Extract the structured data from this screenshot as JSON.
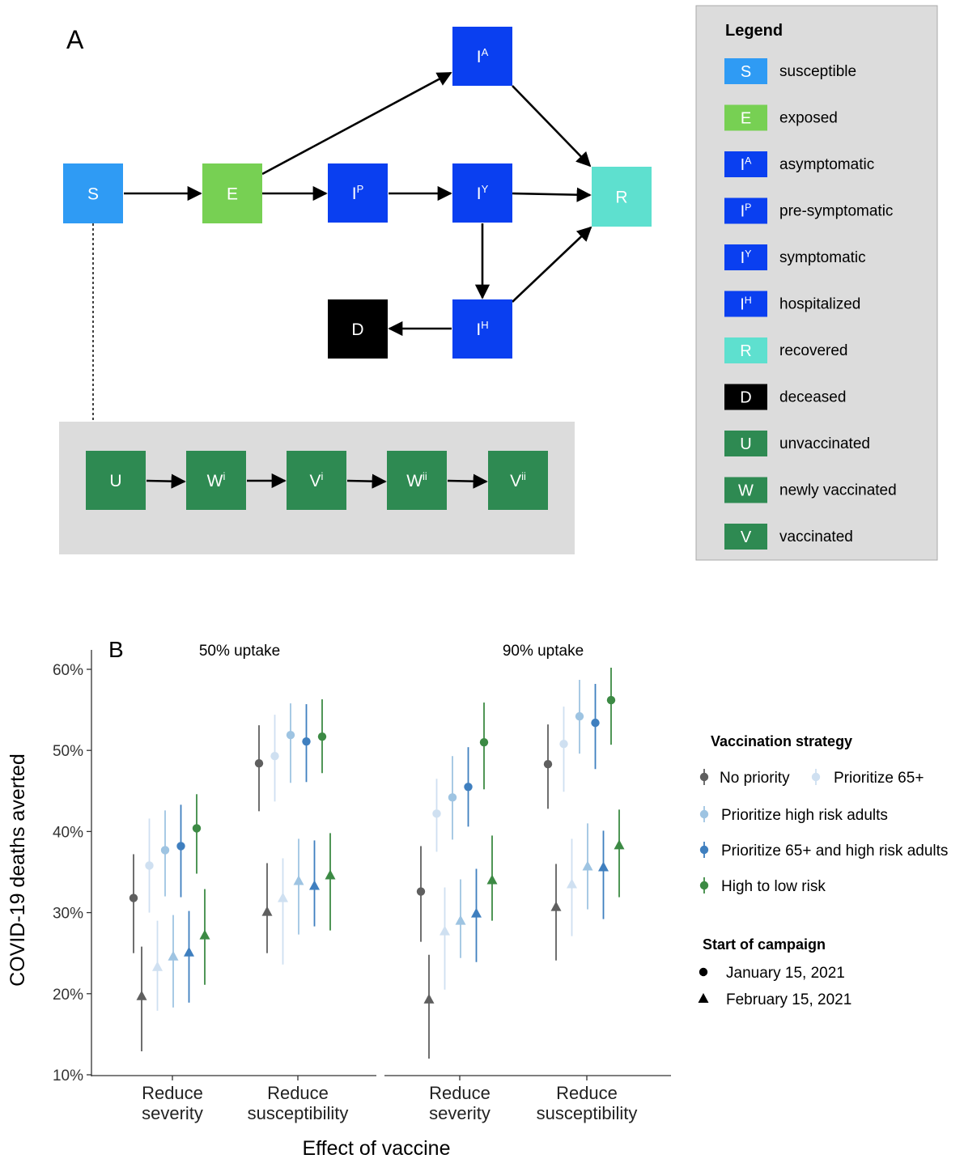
{
  "panel_a": {
    "label": "A",
    "nodes": [
      {
        "id": "S",
        "main": "S",
        "sup": "",
        "color": "#2f9bf4",
        "text_color": "#ffffff"
      },
      {
        "id": "E",
        "main": "E",
        "sup": "",
        "color": "#77d053",
        "text_color": "#ffffff"
      },
      {
        "id": "IA",
        "main": "I",
        "sup": "A",
        "color": "#0a3ff0",
        "text_color": "#ffffff"
      },
      {
        "id": "IP",
        "main": "I",
        "sup": "P",
        "color": "#0a3ff0",
        "text_color": "#ffffff"
      },
      {
        "id": "IY",
        "main": "I",
        "sup": "Y",
        "color": "#0a3ff0",
        "text_color": "#ffffff"
      },
      {
        "id": "IH",
        "main": "I",
        "sup": "H",
        "color": "#0a3ff0",
        "text_color": "#ffffff"
      },
      {
        "id": "R",
        "main": "R",
        "sup": "",
        "color": "#5ee0cf",
        "text_color": "#ffffff"
      },
      {
        "id": "D",
        "main": "D",
        "sup": "",
        "color": "#000000",
        "text_color": "#ffffff"
      },
      {
        "id": "U",
        "main": "U",
        "sup": "",
        "color": "#2e8a52",
        "text_color": "#ffffff"
      },
      {
        "id": "Wi",
        "main": "W",
        "sup": "i",
        "color": "#2e8a52",
        "text_color": "#ffffff"
      },
      {
        "id": "Vi",
        "main": "V",
        "sup": "i",
        "color": "#2e8a52",
        "text_color": "#ffffff"
      },
      {
        "id": "Wii",
        "main": "W",
        "sup": "ii",
        "color": "#2e8a52",
        "text_color": "#ffffff"
      },
      {
        "id": "Vii",
        "main": "V",
        "sup": "ii",
        "color": "#2e8a52",
        "text_color": "#ffffff"
      }
    ],
    "edges": [
      {
        "from": "S",
        "to": "E"
      },
      {
        "from": "E",
        "to": "IA"
      },
      {
        "from": "E",
        "to": "IP"
      },
      {
        "from": "IP",
        "to": "IY"
      },
      {
        "from": "IA",
        "to": "R"
      },
      {
        "from": "IY",
        "to": "R"
      },
      {
        "from": "IY",
        "to": "IH"
      },
      {
        "from": "IH",
        "to": "R"
      },
      {
        "from": "IH",
        "to": "D"
      },
      {
        "from": "U",
        "to": "Wi"
      },
      {
        "from": "Wi",
        "to": "Vi"
      },
      {
        "from": "Vi",
        "to": "Wii"
      },
      {
        "from": "Wii",
        "to": "Vii"
      }
    ],
    "legend": {
      "title": "Legend",
      "items": [
        {
          "main": "S",
          "sup": "",
          "color": "#2f9bf4",
          "label": "susceptible"
        },
        {
          "main": "E",
          "sup": "",
          "color": "#77d053",
          "label": "exposed"
        },
        {
          "main": "I",
          "sup": "A",
          "color": "#0a3ff0",
          "label": "asymptomatic"
        },
        {
          "main": "I",
          "sup": "P",
          "color": "#0a3ff0",
          "label": "pre-symptomatic"
        },
        {
          "main": "I",
          "sup": "Y",
          "color": "#0a3ff0",
          "label": "symptomatic"
        },
        {
          "main": "I",
          "sup": "H",
          "color": "#0a3ff0",
          "label": "hospitalized"
        },
        {
          "main": "R",
          "sup": "",
          "color": "#5ee0cf",
          "label": "recovered"
        },
        {
          "main": "D",
          "sup": "",
          "color": "#000000",
          "label": "deceased"
        },
        {
          "main": "U",
          "sup": "",
          "color": "#2e8a52",
          "label": "unvaccinated"
        },
        {
          "main": "W",
          "sup": "",
          "color": "#2e8a52",
          "label": "newly vaccinated"
        },
        {
          "main": "V",
          "sup": "",
          "color": "#2e8a52",
          "label": "vaccinated"
        }
      ]
    }
  },
  "chart_data": {
    "type": "scatter",
    "panel_label": "B",
    "title": "",
    "xlabel": "Effect of vaccine",
    "ylabel": "COVID-19 deaths averted",
    "ylim": [
      10,
      60
    ],
    "yticks": [
      10,
      20,
      30,
      40,
      50,
      60
    ],
    "ytick_format": "%",
    "grid": false,
    "facets": [
      "50% uptake",
      "90% uptake"
    ],
    "categories": [
      "Reduce\nseverity",
      "Reduce\nsusceptibility"
    ],
    "legend_placement": "right",
    "strategy_legend_title": "Vaccination strategy",
    "campaign_legend_title": "Start of campaign",
    "strategies": [
      {
        "name": "No priority",
        "color": "#5f5f5f"
      },
      {
        "name": "Prioritize 65+",
        "color": "#cfe0f1"
      },
      {
        "name": "Prioritize high risk adults",
        "color": "#9ec4e2"
      },
      {
        "name": "Prioritize 65+ and high risk adults",
        "color": "#3f7fbf"
      },
      {
        "name": "High to low risk",
        "color": "#3c8a44"
      }
    ],
    "campaigns": [
      {
        "name": "January 15, 2021",
        "shape": "circle"
      },
      {
        "name": "February 15, 2021",
        "shape": "triangle"
      }
    ],
    "series": [
      {
        "facet": "50% uptake",
        "category": "Reduce\nseverity",
        "campaign": "January 15, 2021",
        "points": [
          {
            "strategy": "No priority",
            "value": 31.8,
            "low": 25.0,
            "high": 37.2
          },
          {
            "strategy": "Prioritize 65+",
            "value": 35.8,
            "low": 30.0,
            "high": 41.6
          },
          {
            "strategy": "Prioritize high risk adults",
            "value": 37.7,
            "low": 32.0,
            "high": 42.6
          },
          {
            "strategy": "Prioritize 65+ and high risk adults",
            "value": 38.2,
            "low": 31.9,
            "high": 43.3
          },
          {
            "strategy": "High to low risk",
            "value": 40.4,
            "low": 34.8,
            "high": 44.6
          }
        ]
      },
      {
        "facet": "50% uptake",
        "category": "Reduce\nseverity",
        "campaign": "February 15, 2021",
        "points": [
          {
            "strategy": "No priority",
            "value": 19.7,
            "low": 12.9,
            "high": 25.8
          },
          {
            "strategy": "Prioritize 65+",
            "value": 23.3,
            "low": 17.9,
            "high": 29.0
          },
          {
            "strategy": "Prioritize high risk adults",
            "value": 24.6,
            "low": 18.3,
            "high": 29.7
          },
          {
            "strategy": "Prioritize 65+ and high risk adults",
            "value": 25.1,
            "low": 18.9,
            "high": 30.2
          },
          {
            "strategy": "High to low risk",
            "value": 27.2,
            "low": 21.1,
            "high": 32.9
          }
        ]
      },
      {
        "facet": "50% uptake",
        "category": "Reduce\nsusceptibility",
        "campaign": "January 15, 2021",
        "points": [
          {
            "strategy": "No priority",
            "value": 48.4,
            "low": 42.5,
            "high": 53.1
          },
          {
            "strategy": "Prioritize 65+",
            "value": 49.3,
            "low": 43.7,
            "high": 54.4
          },
          {
            "strategy": "Prioritize high risk adults",
            "value": 51.9,
            "low": 46.0,
            "high": 55.8
          },
          {
            "strategy": "Prioritize 65+ and high risk adults",
            "value": 51.1,
            "low": 46.1,
            "high": 55.7
          },
          {
            "strategy": "High to low risk",
            "value": 51.7,
            "low": 47.2,
            "high": 56.3
          }
        ]
      },
      {
        "facet": "50% uptake",
        "category": "Reduce\nsusceptibility",
        "campaign": "February 15, 2021",
        "points": [
          {
            "strategy": "No priority",
            "value": 30.1,
            "low": 25.0,
            "high": 36.1
          },
          {
            "strategy": "Prioritize 65+",
            "value": 31.8,
            "low": 23.6,
            "high": 36.7
          },
          {
            "strategy": "Prioritize high risk adults",
            "value": 33.9,
            "low": 27.3,
            "high": 39.1
          },
          {
            "strategy": "Prioritize 65+ and high risk adults",
            "value": 33.3,
            "low": 28.3,
            "high": 38.9
          },
          {
            "strategy": "High to low risk",
            "value": 34.6,
            "low": 27.8,
            "high": 39.8
          }
        ]
      },
      {
        "facet": "90% uptake",
        "category": "Reduce\nseverity",
        "campaign": "January 15, 2021",
        "points": [
          {
            "strategy": "No priority",
            "value": 32.6,
            "low": 26.4,
            "high": 38.2
          },
          {
            "strategy": "Prioritize 65+",
            "value": 42.2,
            "low": 37.5,
            "high": 46.5
          },
          {
            "strategy": "Prioritize high risk adults",
            "value": 44.2,
            "low": 39.0,
            "high": 49.3
          },
          {
            "strategy": "Prioritize 65+ and high risk adults",
            "value": 45.5,
            "low": 40.6,
            "high": 50.4
          },
          {
            "strategy": "High to low risk",
            "value": 51.0,
            "low": 45.2,
            "high": 55.9
          }
        ]
      },
      {
        "facet": "90% uptake",
        "category": "Reduce\nseverity",
        "campaign": "February 15, 2021",
        "points": [
          {
            "strategy": "No priority",
            "value": 19.3,
            "low": 12.0,
            "high": 24.8
          },
          {
            "strategy": "Prioritize 65+",
            "value": 27.7,
            "low": 20.5,
            "high": 33.1
          },
          {
            "strategy": "Prioritize high risk adults",
            "value": 29.0,
            "low": 24.4,
            "high": 34.1
          },
          {
            "strategy": "Prioritize 65+ and high risk adults",
            "value": 29.9,
            "low": 23.9,
            "high": 35.4
          },
          {
            "strategy": "High to low risk",
            "value": 34.0,
            "low": 29.0,
            "high": 39.5
          }
        ]
      },
      {
        "facet": "90% uptake",
        "category": "Reduce\nsusceptibility",
        "campaign": "January 15, 2021",
        "points": [
          {
            "strategy": "No priority",
            "value": 48.3,
            "low": 42.8,
            "high": 53.2
          },
          {
            "strategy": "Prioritize 65+",
            "value": 50.8,
            "low": 44.9,
            "high": 55.4
          },
          {
            "strategy": "Prioritize high risk adults",
            "value": 54.2,
            "low": 49.6,
            "high": 58.7
          },
          {
            "strategy": "Prioritize 65+ and high risk adults",
            "value": 53.4,
            "low": 47.7,
            "high": 58.2
          },
          {
            "strategy": "High to low risk",
            "value": 56.2,
            "low": 50.7,
            "high": 60.2
          }
        ]
      },
      {
        "facet": "90% uptake",
        "category": "Reduce\nsusceptibility",
        "campaign": "February 15, 2021",
        "points": [
          {
            "strategy": "No priority",
            "value": 30.7,
            "low": 24.1,
            "high": 36.0
          },
          {
            "strategy": "Prioritize 65+",
            "value": 33.5,
            "low": 27.1,
            "high": 39.1
          },
          {
            "strategy": "Prioritize high risk adults",
            "value": 35.7,
            "low": 30.4,
            "high": 41.0
          },
          {
            "strategy": "Prioritize 65+ and high risk adults",
            "value": 35.6,
            "low": 29.2,
            "high": 40.1
          },
          {
            "strategy": "High to low risk",
            "value": 38.3,
            "low": 31.9,
            "high": 42.7
          }
        ]
      }
    ]
  }
}
